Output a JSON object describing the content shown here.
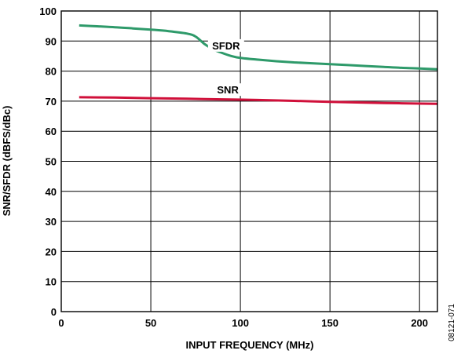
{
  "chart_data": {
    "type": "line",
    "xlabel": "INPUT FREQUENCY (MHz)",
    "ylabel": "SNR/SFDR (dBFS/dBc)",
    "xlim": [
      0,
      210
    ],
    "ylim": [
      0,
      100
    ],
    "x_ticks": [
      0,
      50,
      100,
      150,
      200
    ],
    "y_ticks": [
      0,
      10,
      20,
      30,
      40,
      50,
      60,
      70,
      80,
      90,
      100
    ],
    "grid": true,
    "series": [
      {
        "name": "SFDR",
        "color": "#2e9a6a",
        "x": [
          10,
          20,
          30,
          40,
          50,
          60,
          70,
          75,
          80,
          85,
          90,
          95,
          100,
          110,
          120,
          130,
          140,
          150,
          160,
          170,
          180,
          190,
          200,
          210
        ],
        "y": [
          95.2,
          94.9,
          94.6,
          94.2,
          93.8,
          93.3,
          92.5,
          91.5,
          89.0,
          87.2,
          86.0,
          85.0,
          84.4,
          83.8,
          83.3,
          82.9,
          82.6,
          82.3,
          82.0,
          81.7,
          81.4,
          81.1,
          80.9,
          80.6
        ]
      },
      {
        "name": "SNR",
        "color": "#d0103a",
        "x": [
          10,
          30,
          50,
          70,
          90,
          110,
          130,
          150,
          170,
          190,
          210
        ],
        "y": [
          71.3,
          71.2,
          71.0,
          70.8,
          70.6,
          70.4,
          70.1,
          69.8,
          69.5,
          69.3,
          69.1
        ]
      }
    ],
    "series_labels": [
      {
        "text": "SFDR",
        "x": 92,
        "y": 87.5
      },
      {
        "text": "SNR",
        "x": 93,
        "y": 72.8
      }
    ]
  },
  "figure_id": "08121-071"
}
